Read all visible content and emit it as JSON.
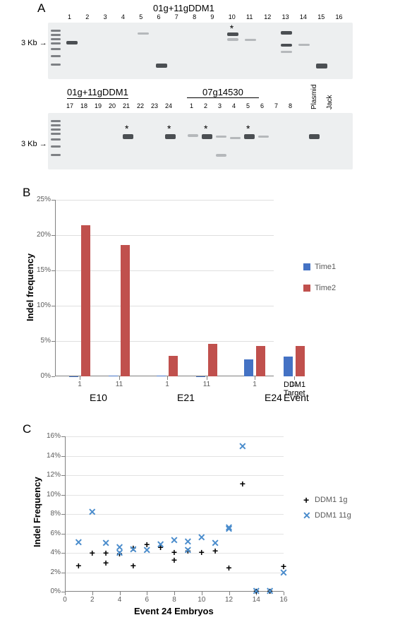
{
  "panelA": {
    "label": "A",
    "top_title": "01g+11gDDM1",
    "row1": {
      "lane_count": 16,
      "marker_label": "3 Kb",
      "asterisk_lanes": [
        10
      ],
      "bands": [
        {
          "lane": 1,
          "y": 26,
          "intensity": "dark",
          "h": 5
        },
        {
          "lane": 5,
          "y": 14,
          "intensity": "faint",
          "h": 3
        },
        {
          "lane": 6,
          "y": 58,
          "intensity": "dark",
          "h": 6
        },
        {
          "lane": 10,
          "y": 14,
          "intensity": "dark",
          "h": 5
        },
        {
          "lane": 10,
          "y": 22,
          "intensity": "faint",
          "h": 4
        },
        {
          "lane": 11,
          "y": 23,
          "intensity": "faint",
          "h": 3
        },
        {
          "lane": 13,
          "y": 12,
          "intensity": "dark",
          "h": 5
        },
        {
          "lane": 13,
          "y": 30,
          "intensity": "dark",
          "h": 4
        },
        {
          "lane": 13,
          "y": 40,
          "intensity": "faint",
          "h": 3
        },
        {
          "lane": 14,
          "y": 30,
          "intensity": "faint",
          "h": 3
        },
        {
          "lane": 15,
          "y": 58,
          "intensity": "dark",
          "h": 7
        }
      ]
    },
    "row2": {
      "group1_label": "01g+11gDDM1",
      "group2_label": "07g14530",
      "extra_labels": [
        "Plasmid",
        "Jack"
      ],
      "lane_nums_g1": [
        17,
        18,
        19,
        20,
        21,
        22,
        23,
        24
      ],
      "lane_nums_g2": [
        1,
        2,
        3,
        4,
        5,
        6,
        7,
        8
      ],
      "marker_label": "3 Kb",
      "asterisk_lanes_g1": [
        21,
        24
      ],
      "asterisk_lanes_g2": [
        2,
        5
      ],
      "bands": [
        {
          "group": 1,
          "lane": 5,
          "y": 30,
          "intensity": "dark",
          "h": 7
        },
        {
          "group": 1,
          "lane": 8,
          "y": 30,
          "intensity": "dark",
          "h": 7
        },
        {
          "group": 2,
          "lane": 1,
          "y": 30,
          "intensity": "faint",
          "h": 4
        },
        {
          "group": 2,
          "lane": 2,
          "y": 30,
          "intensity": "dark",
          "h": 7
        },
        {
          "group": 2,
          "lane": 3,
          "y": 32,
          "intensity": "faint",
          "h": 3
        },
        {
          "group": 2,
          "lane": 3,
          "y": 58,
          "intensity": "faint",
          "h": 4
        },
        {
          "group": 2,
          "lane": 4,
          "y": 34,
          "intensity": "faint",
          "h": 3
        },
        {
          "group": 2,
          "lane": 5,
          "y": 30,
          "intensity": "dark",
          "h": 7
        },
        {
          "group": 2,
          "lane": 6,
          "y": 32,
          "intensity": "faint",
          "h": 3
        },
        {
          "group": "extra",
          "lane": 1,
          "y": 30,
          "intensity": "dark",
          "h": 7
        }
      ]
    }
  },
  "panelB": {
    "label": "B",
    "ylabel": "Indel frequency",
    "ylim": [
      0,
      25
    ],
    "ytick_step": 5,
    "series": [
      {
        "name": "Time1",
        "color": "#4472c4"
      },
      {
        "name": "Time2",
        "color": "#c0504d"
      }
    ],
    "bottom_labels": {
      "ddm": "DDM1 Target",
      "event": "Event"
    },
    "events": [
      {
        "name": "E10",
        "targets": [
          {
            "label": "1",
            "Time1": 0.05,
            "Time2": 21.4
          },
          {
            "label": "11",
            "Time1": 0.1,
            "Time2": 18.6
          }
        ]
      },
      {
        "name": "E21",
        "targets": [
          {
            "label": "1",
            "Time1": 0.1,
            "Time2": 2.9
          },
          {
            "label": "11",
            "Time1": 0.05,
            "Time2": 4.6
          }
        ]
      },
      {
        "name": "E24",
        "targets": [
          {
            "label": "1",
            "Time1": 2.45,
            "Time2": 4.35
          },
          {
            "label": "11",
            "Time1": 2.85,
            "Time2": 4.35
          }
        ]
      }
    ],
    "plot_bg": "#ffffff",
    "grid_color": "#808080",
    "tick_fontsize": 10,
    "label_fontsize": 13
  },
  "panelC": {
    "label": "C",
    "ylabel": "Indel Frequency",
    "xlabel": "Event 24 Embryos",
    "ylim": [
      0,
      16
    ],
    "ytick_step": 2,
    "xlim": [
      0,
      16
    ],
    "xtick_step": 2,
    "series": [
      {
        "name": "DDM1 1g",
        "marker": "plus",
        "color": "#000000"
      },
      {
        "name": "DDM1 11g",
        "marker": "x",
        "color": "#4a8ccc"
      }
    ],
    "points_1g": [
      {
        "x": 1,
        "y": 2.7
      },
      {
        "x": 2,
        "y": 4.0
      },
      {
        "x": 3,
        "y": 4.0
      },
      {
        "x": 3,
        "y": 3.0
      },
      {
        "x": 4,
        "y": 3.9
      },
      {
        "x": 5,
        "y": 4.5
      },
      {
        "x": 5,
        "y": 2.7
      },
      {
        "x": 6,
        "y": 4.9
      },
      {
        "x": 7,
        "y": 4.6
      },
      {
        "x": 8,
        "y": 4.1
      },
      {
        "x": 8,
        "y": 3.3
      },
      {
        "x": 9,
        "y": 4.2
      },
      {
        "x": 10,
        "y": 4.1
      },
      {
        "x": 11,
        "y": 4.2
      },
      {
        "x": 12,
        "y": 2.5
      },
      {
        "x": 13,
        "y": 11.1
      },
      {
        "x": 14,
        "y": 0.05
      },
      {
        "x": 15,
        "y": 0.1
      },
      {
        "x": 16,
        "y": 2.6
      }
    ],
    "points_11g": [
      {
        "x": 1,
        "y": 5.1
      },
      {
        "x": 2,
        "y": 8.2
      },
      {
        "x": 3,
        "y": 5.0
      },
      {
        "x": 4,
        "y": 4.6
      },
      {
        "x": 4,
        "y": 4.0
      },
      {
        "x": 5,
        "y": 4.4
      },
      {
        "x": 6,
        "y": 4.3
      },
      {
        "x": 7,
        "y": 4.9
      },
      {
        "x": 8,
        "y": 5.3
      },
      {
        "x": 9,
        "y": 4.3
      },
      {
        "x": 9,
        "y": 5.2
      },
      {
        "x": 10,
        "y": 5.6
      },
      {
        "x": 11,
        "y": 5.0
      },
      {
        "x": 12,
        "y": 6.5
      },
      {
        "x": 12,
        "y": 6.6
      },
      {
        "x": 13,
        "y": 15.0
      },
      {
        "x": 14,
        "y": 0.1
      },
      {
        "x": 15,
        "y": 0.1
      },
      {
        "x": 16,
        "y": 2.0
      }
    ]
  }
}
